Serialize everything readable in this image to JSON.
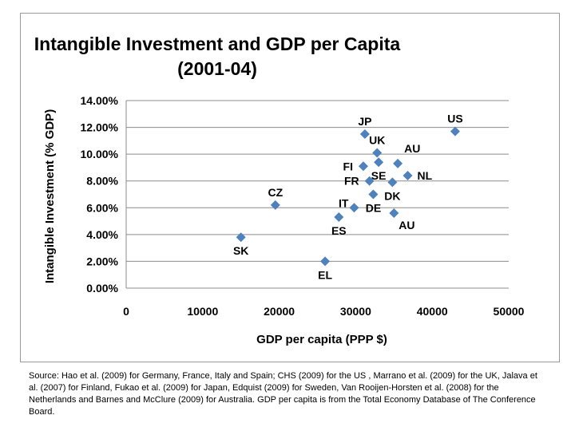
{
  "chart_data": {
    "type": "scatter",
    "title_lines": [
      "Intangible Investment and GDP per Capita",
      "(2001-04)"
    ],
    "xlabel": "GDP per capita (PPP $)",
    "ylabel": "Intangible Investment (% GDP)",
    "xlim": [
      0,
      50000
    ],
    "ylim": [
      0,
      0.14
    ],
    "x_ticks": [
      0,
      10000,
      20000,
      30000,
      40000,
      50000
    ],
    "x_tick_labels": [
      "0",
      "10000",
      "20000",
      "30000",
      "40000",
      "50000"
    ],
    "y_ticks": [
      0,
      0.02,
      0.04,
      0.06,
      0.08,
      0.1,
      0.12,
      0.14
    ],
    "y_tick_labels": [
      "0.00%",
      "2.00%",
      "4.00%",
      "6.00%",
      "8.00%",
      "10.00%",
      "12.00%",
      "14.00%"
    ],
    "grid": "horizontal",
    "marker": "diamond",
    "marker_color": "#4f81bd",
    "points": [
      {
        "label": "US",
        "x": 43000,
        "y": 0.117,
        "label_pos": "above"
      },
      {
        "label": "JP",
        "x": 31200,
        "y": 0.115,
        "label_pos": "above"
      },
      {
        "label": "UK",
        "x": 32800,
        "y": 0.101,
        "label_pos": "above"
      },
      {
        "label": "AU",
        "x": 35500,
        "y": 0.093,
        "label_pos": "above-right"
      },
      {
        "label": "SE",
        "x": 33000,
        "y": 0.094,
        "label_pos": "below"
      },
      {
        "label": "FI",
        "x": 31000,
        "y": 0.091,
        "label_pos": "left"
      },
      {
        "label": "NL",
        "x": 36800,
        "y": 0.084,
        "label_pos": "right"
      },
      {
        "label": "FR",
        "x": 31800,
        "y": 0.08,
        "label_pos": "left"
      },
      {
        "label": "DK",
        "x": 34800,
        "y": 0.079,
        "label_pos": "below"
      },
      {
        "label": "DE",
        "x": 32300,
        "y": 0.07,
        "label_pos": "below"
      },
      {
        "label": "IT",
        "x": 29800,
        "y": 0.06,
        "label_pos": "left-above"
      },
      {
        "label": "AU",
        "x": 35000,
        "y": 0.056,
        "label_pos": "below-right"
      },
      {
        "label": "ES",
        "x": 27800,
        "y": 0.053,
        "label_pos": "below"
      },
      {
        "label": "CZ",
        "x": 19500,
        "y": 0.062,
        "label_pos": "above"
      },
      {
        "label": "SK",
        "x": 15000,
        "y": 0.038,
        "label_pos": "below"
      },
      {
        "label": "EL",
        "x": 26000,
        "y": 0.02,
        "label_pos": "below"
      }
    ]
  },
  "source_note": "Source: Hao et al. (2009) for Germany, France, Italy and Spain; CHS (2009) for the US , Marrano et al. (2009) for the UK, Jalava et al. (2007) for Finland, Fukao et al. (2009) for Japan, Edquist (2009) for Sweden, Van Rooijen-Horsten et al. (2008) for the Netherlands and Barnes and McClure (2009) for Australia.  GDP per capita is from the Total Economy Database of The Conference Board."
}
